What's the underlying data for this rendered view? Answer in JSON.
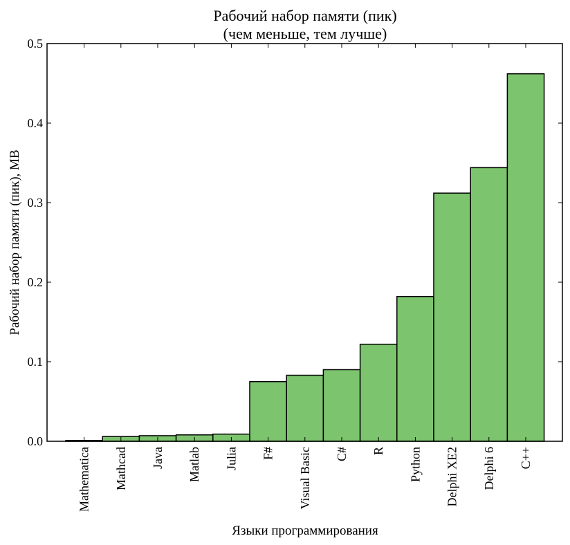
{
  "chart_data": {
    "type": "bar",
    "title": [
      "Рабочий набор памяти (пик)",
      "(чем меньше, тем лучше)"
    ],
    "xlabel": "Языки программирования",
    "ylabel": "Рабочий набор памяти (пик), MB",
    "ylim": [
      0,
      0.5
    ],
    "yticks": [
      "0.0",
      "0.1",
      "0.2",
      "0.3",
      "0.4",
      "0.5"
    ],
    "grid": false,
    "bar_color": "#7cc46d",
    "edge_color": "#000000",
    "categories": [
      "Mathematica",
      "Mathcad",
      "Java",
      "Matlab",
      "Julia",
      "F#",
      "Visual Basic",
      "C#",
      "R",
      "Python",
      "Delphi XE2",
      "Delphi 6",
      "C++"
    ],
    "values": [
      0.001,
      0.006,
      0.007,
      0.008,
      0.009,
      0.075,
      0.083,
      0.09,
      0.122,
      0.182,
      0.312,
      0.344,
      0.462
    ]
  }
}
